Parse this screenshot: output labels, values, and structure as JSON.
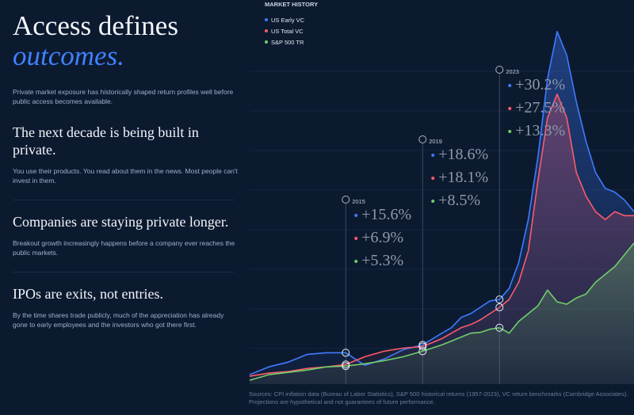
{
  "hero": {
    "title": "Access defines",
    "accent": "outcomes.",
    "subtitle": "Private market exposure has historically shaped return profiles well before public access becomes available."
  },
  "sections": [
    {
      "heading": "The next decade is being built in private.",
      "body": "You use their products. You read about them in the news. Most people can't invest in them."
    },
    {
      "heading": "Companies are staying private longer.",
      "body": "Breakout growth increasingly happens before a company ever reaches the public markets."
    },
    {
      "heading": "IPOs are exits, not entries.",
      "body": "By the time shares trade publicly, much of the appreciation has already gone to early employees and the investors who got there first."
    }
  ],
  "footnote": {
    "line1": "Sources: CPI inflation data (Bureau of Labor Statistics), S&P 500 historical returns (1957-2023), VC return benchmarks (Cambridge Associates).",
    "line2": "Projections are hypothetical and not guarantees of future performance."
  },
  "chart_data": {
    "type": "area",
    "title": "MARKET HISTORY",
    "legend_position": "top-left",
    "colors": {
      "US Early VC": "#3f7bff",
      "US Total VC": "#ff5a6a",
      "S&P 500 TR": "#6fcf6a"
    },
    "series": [
      {
        "name": "US Early VC",
        "color": "#3f7bff",
        "x": [
          2010,
          2011,
          2012,
          2013,
          2014,
          2015,
          2016,
          2017,
          2018,
          2019,
          2020,
          2020.5,
          2021,
          2021.5,
          2022,
          2022.5,
          2023,
          2023.5,
          2024,
          2024.5,
          2025,
          2025.5,
          2026,
          2026.5,
          2027,
          2027.5,
          2028,
          2028.5,
          2029,
          2029.5,
          2030
        ],
        "values": [
          2,
          12,
          18,
          28,
          30,
          30,
          14,
          22,
          34,
          40,
          55,
          62,
          75,
          80,
          88,
          96,
          98,
          112,
          145,
          200,
          280,
          380,
          440,
          410,
          350,
          300,
          260,
          240,
          235,
          225,
          210
        ]
      },
      {
        "name": "US Total VC",
        "color": "#ff5a6a",
        "x": [
          2010,
          2011,
          2012,
          2013,
          2014,
          2015,
          2016,
          2017,
          2018,
          2019,
          2020,
          2020.5,
          2021,
          2021.5,
          2022,
          2022.5,
          2023,
          2023.5,
          2024,
          2024.5,
          2025,
          2025.5,
          2026,
          2026.5,
          2027,
          2027.5,
          2028,
          2028.5,
          2029,
          2029.5,
          2030
        ],
        "values": [
          0,
          4,
          6,
          10,
          12,
          15,
          25,
          32,
          36,
          38,
          48,
          55,
          62,
          66,
          72,
          80,
          88,
          98,
          120,
          160,
          250,
          330,
          360,
          330,
          260,
          230,
          210,
          200,
          210,
          205,
          205
        ]
      },
      {
        "name": "S&P 500 TR",
        "color": "#6fcf6a",
        "x": [
          2010,
          2011,
          2012,
          2013,
          2014,
          2015,
          2016,
          2017,
          2018,
          2019,
          2020,
          2020.5,
          2021,
          2021.5,
          2022,
          2022.5,
          2023,
          2023.5,
          2024,
          2024.5,
          2025,
          2025.5,
          2026,
          2026.5,
          2027,
          2027.5,
          2028,
          2028.5,
          2029,
          2029.5,
          2030
        ],
        "values": [
          -5,
          2,
          5,
          8,
          12,
          13,
          16,
          20,
          25,
          32,
          40,
          45,
          50,
          55,
          56,
          60,
          62,
          55,
          70,
          80,
          90,
          110,
          95,
          92,
          100,
          105,
          120,
          130,
          140,
          155,
          170
        ]
      }
    ],
    "markers": [
      {
        "year": "2015",
        "x": 2015,
        "values": [
          "+15.6%",
          "+6.9%",
          "+5.3%"
        ]
      },
      {
        "year": "2019",
        "x": 2019,
        "values": [
          "+18.6%",
          "+18.1%",
          "+8.5%"
        ]
      },
      {
        "year": "2023",
        "x": 2023,
        "values": [
          "+30.2%",
          "+27.5%",
          "+13.3%"
        ]
      }
    ]
  }
}
